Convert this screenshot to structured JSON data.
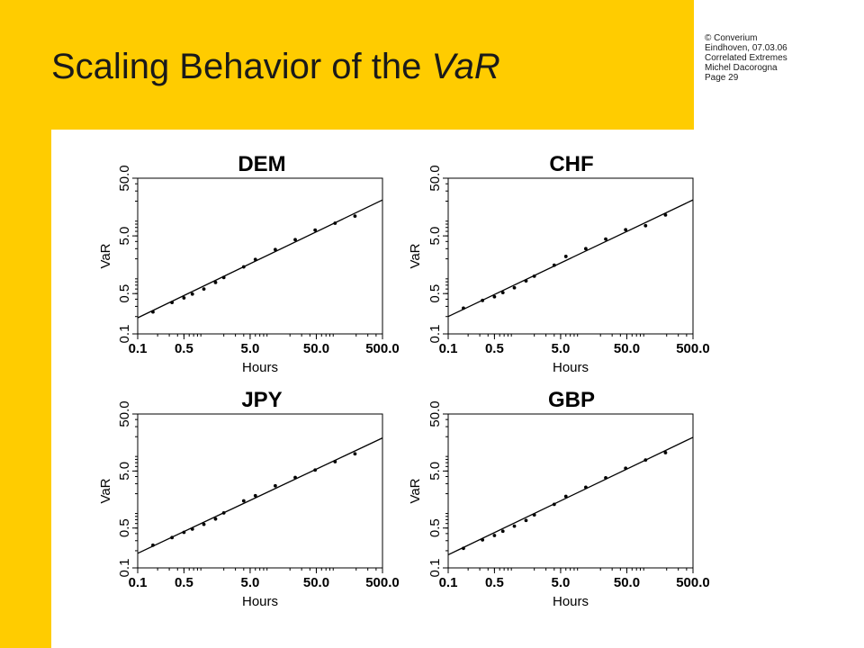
{
  "title": {
    "main": "Scaling Behavior of the ",
    "italic": "VaR"
  },
  "meta": {
    "copyright": "© Converium",
    "lines": [
      "Eindhoven, 07.03.06",
      "Correlated Extremes",
      "Michel Dacorogna",
      "Page 29"
    ]
  },
  "colors": {
    "accent": "#FFCC00",
    "text": "#1a1a1a"
  },
  "chart_data": [
    {
      "type": "scatter",
      "title": "DEM",
      "xlabel": "Hours",
      "ylabel": "VaR",
      "xscale": "log",
      "yscale": "log",
      "xlim": [
        0.1,
        500
      ],
      "ylim": [
        0.1,
        50
      ],
      "x_ticks": [
        "0.1",
        "0.5",
        "5.0",
        "50.0",
        "500.0"
      ],
      "y_ticks": [
        "0.1",
        "0.5",
        "5.0",
        "50.0"
      ],
      "points": [
        [
          0.17,
          0.24
        ],
        [
          0.33,
          0.35
        ],
        [
          0.5,
          0.42
        ],
        [
          0.67,
          0.49
        ],
        [
          1,
          0.6
        ],
        [
          1.5,
          0.78
        ],
        [
          2,
          0.95
        ],
        [
          4,
          1.45
        ],
        [
          6,
          1.95
        ],
        [
          12,
          2.9
        ],
        [
          24,
          4.3
        ],
        [
          48,
          6.3
        ],
        [
          96,
          8.3
        ],
        [
          192,
          11.0
        ]
      ],
      "fit_line": {
        "x": [
          0.1,
          500
        ],
        "y": [
          0.19,
          21.0
        ]
      }
    },
    {
      "type": "scatter",
      "title": "CHF",
      "xlabel": "Hours",
      "ylabel": "VaR",
      "xscale": "log",
      "yscale": "log",
      "xlim": [
        0.1,
        500
      ],
      "ylim": [
        0.1,
        50
      ],
      "x_ticks": [
        "0.1",
        "0.5",
        "5.0",
        "50.0",
        "500.0"
      ],
      "y_ticks": [
        "0.1",
        "0.5",
        "5.0",
        "50.0"
      ],
      "points": [
        [
          0.17,
          0.28
        ],
        [
          0.33,
          0.38
        ],
        [
          0.5,
          0.44
        ],
        [
          0.67,
          0.52
        ],
        [
          1,
          0.63
        ],
        [
          1.5,
          0.83
        ],
        [
          2,
          1.0
        ],
        [
          4,
          1.55
        ],
        [
          6,
          2.2
        ],
        [
          12,
          3.0
        ],
        [
          24,
          4.4
        ],
        [
          48,
          6.4
        ],
        [
          96,
          7.5
        ],
        [
          192,
          11.5
        ]
      ],
      "fit_line": {
        "x": [
          0.1,
          500
        ],
        "y": [
          0.2,
          21.0
        ]
      }
    },
    {
      "type": "scatter",
      "title": "JPY",
      "xlabel": "Hours",
      "ylabel": "VaR",
      "xscale": "log",
      "yscale": "log",
      "xlim": [
        0.1,
        500
      ],
      "ylim": [
        0.1,
        50
      ],
      "x_ticks": [
        "0.1",
        "0.5",
        "5.0",
        "50.0",
        "500.0"
      ],
      "y_ticks": [
        "0.1",
        "0.5",
        "5.0",
        "50.0"
      ],
      "points": [
        [
          0.17,
          0.25
        ],
        [
          0.33,
          0.34
        ],
        [
          0.5,
          0.42
        ],
        [
          0.67,
          0.48
        ],
        [
          1,
          0.58
        ],
        [
          1.5,
          0.72
        ],
        [
          2,
          0.92
        ],
        [
          4,
          1.5
        ],
        [
          6,
          1.85
        ],
        [
          12,
          2.75
        ],
        [
          24,
          3.85
        ],
        [
          48,
          5.2
        ],
        [
          96,
          7.3
        ],
        [
          192,
          10.0
        ]
      ],
      "fit_line": {
        "x": [
          0.1,
          500
        ],
        "y": [
          0.18,
          19.0
        ]
      }
    },
    {
      "type": "scatter",
      "title": "GBP",
      "xlabel": "Hours",
      "ylabel": "VaR",
      "xscale": "log",
      "yscale": "log",
      "xlim": [
        0.1,
        500
      ],
      "ylim": [
        0.1,
        50
      ],
      "x_ticks": [
        "0.1",
        "0.5",
        "5.0",
        "50.0",
        "500.0"
      ],
      "y_ticks": [
        "0.1",
        "0.5",
        "5.0",
        "50.0"
      ],
      "points": [
        [
          0.17,
          0.22
        ],
        [
          0.33,
          0.31
        ],
        [
          0.5,
          0.37
        ],
        [
          0.67,
          0.44
        ],
        [
          1,
          0.54
        ],
        [
          1.5,
          0.68
        ],
        [
          2,
          0.85
        ],
        [
          4,
          1.3
        ],
        [
          6,
          1.8
        ],
        [
          12,
          2.6
        ],
        [
          24,
          3.8
        ],
        [
          48,
          5.6
        ],
        [
          96,
          7.8
        ],
        [
          192,
          10.5
        ]
      ],
      "fit_line": {
        "x": [
          0.1,
          500
        ],
        "y": [
          0.17,
          19.5
        ]
      }
    }
  ]
}
